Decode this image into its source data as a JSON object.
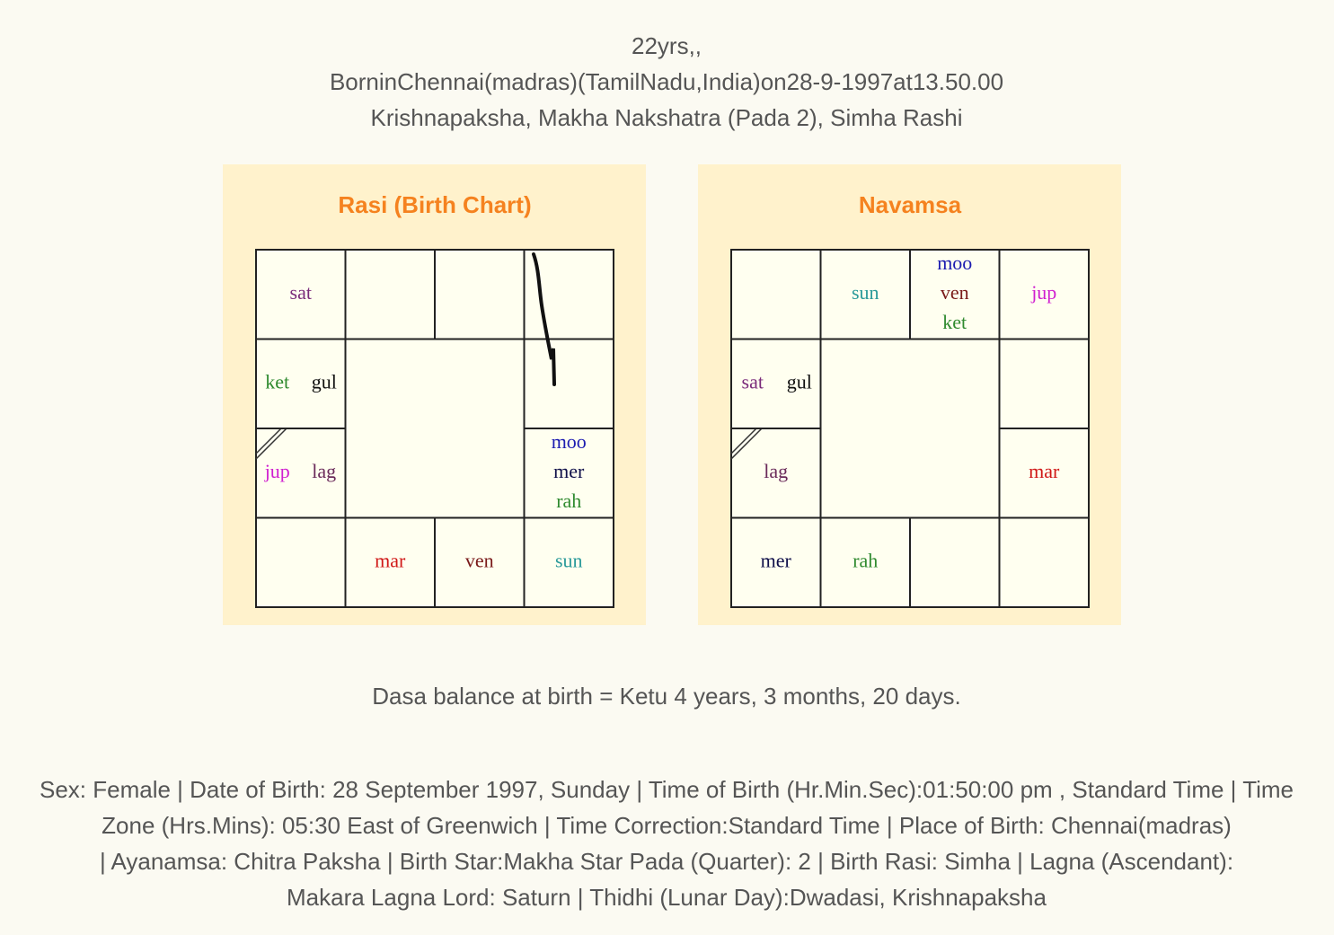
{
  "header": {
    "lines": [
      "22yrs,,",
      "BorninChennai(madras)(TamilNadu,India)on28-9-1997at13.50.00",
      "Krishnapaksha, Makha Nakshatra (Pada 2), Simha Rashi"
    ]
  },
  "charts": [
    {
      "title": "Rasi (Birth Chart)",
      "houses": [
        {
          "planets": [
            {
              "name": "sat",
              "color": "#7a2a7a"
            }
          ]
        },
        {
          "planets": []
        },
        {
          "planets": []
        },
        {
          "planets": []
        },
        {
          "planets": []
        },
        {
          "planets": [
            {
              "name": "moo",
              "color": "#1c1cb0"
            },
            {
              "name": "mer",
              "color": "#10104a"
            },
            {
              "name": "rah",
              "color": "#2f8a2f"
            }
          ]
        },
        {
          "planets": [
            {
              "name": "sun",
              "color": "#2a9a9a"
            }
          ]
        },
        {
          "planets": [
            {
              "name": "ven",
              "color": "#7a1a1a"
            }
          ]
        },
        {
          "planets": [
            {
              "name": "mar",
              "color": "#d01818"
            }
          ]
        },
        {
          "planets": []
        },
        {
          "planets": [
            {
              "name": "jup",
              "color": "#d020d0"
            },
            {
              "name": "lag",
              "color": "#6a2a5a"
            }
          ]
        },
        {
          "planets": [
            {
              "name": "ket",
              "color": "#2f8a2f"
            },
            {
              "name": "gul",
              "color": "#111111"
            }
          ]
        }
      ]
    },
    {
      "title": "Navamsa",
      "houses": [
        {
          "planets": []
        },
        {
          "planets": [
            {
              "name": "sun",
              "color": "#2a9a9a"
            }
          ]
        },
        {
          "planets": [
            {
              "name": "moo",
              "color": "#1c1cb0"
            },
            {
              "name": "ven",
              "color": "#7a1a1a"
            },
            {
              "name": "ket",
              "color": "#2f8a2f"
            }
          ]
        },
        {
          "planets": [
            {
              "name": "jup",
              "color": "#d020d0"
            }
          ]
        },
        {
          "planets": []
        },
        {
          "planets": [
            {
              "name": "mar",
              "color": "#d01818"
            }
          ]
        },
        {
          "planets": []
        },
        {
          "planets": []
        },
        {
          "planets": [
            {
              "name": "rah",
              "color": "#2f8a2f"
            }
          ]
        },
        {
          "planets": [
            {
              "name": "mer",
              "color": "#10104a"
            }
          ]
        },
        {
          "planets": [
            {
              "name": "lag",
              "color": "#6a2a5a"
            }
          ]
        },
        {
          "planets": [
            {
              "name": "sat",
              "color": "#7a2a7a"
            },
            {
              "name": "gul",
              "color": "#111111"
            }
          ]
        }
      ]
    }
  ],
  "dasa": "Dasa balance at birth = Ketu 4 years, 3 months, 20 days.",
  "details": {
    "lines": [
      "Sex: Female | Date of Birth: 28 September 1997, Sunday | Time of Birth (Hr.Min.Sec):01:50:00 pm , Standard Time | Time",
      "Zone (Hrs.Mins): 05:30 East of Greenwich | Time Correction:Standard Time | Place of Birth: Chennai(madras)",
      "| Ayanamsa: Chitra Paksha | Birth Star:Makha Star Pada (Quarter): 2 | Birth Rasi: Simha | Lagna (Ascendant):",
      "Makara Lagna Lord: Saturn | Thidhi (Lunar Day):Dwadasi, Krishnapaksha"
    ]
  }
}
